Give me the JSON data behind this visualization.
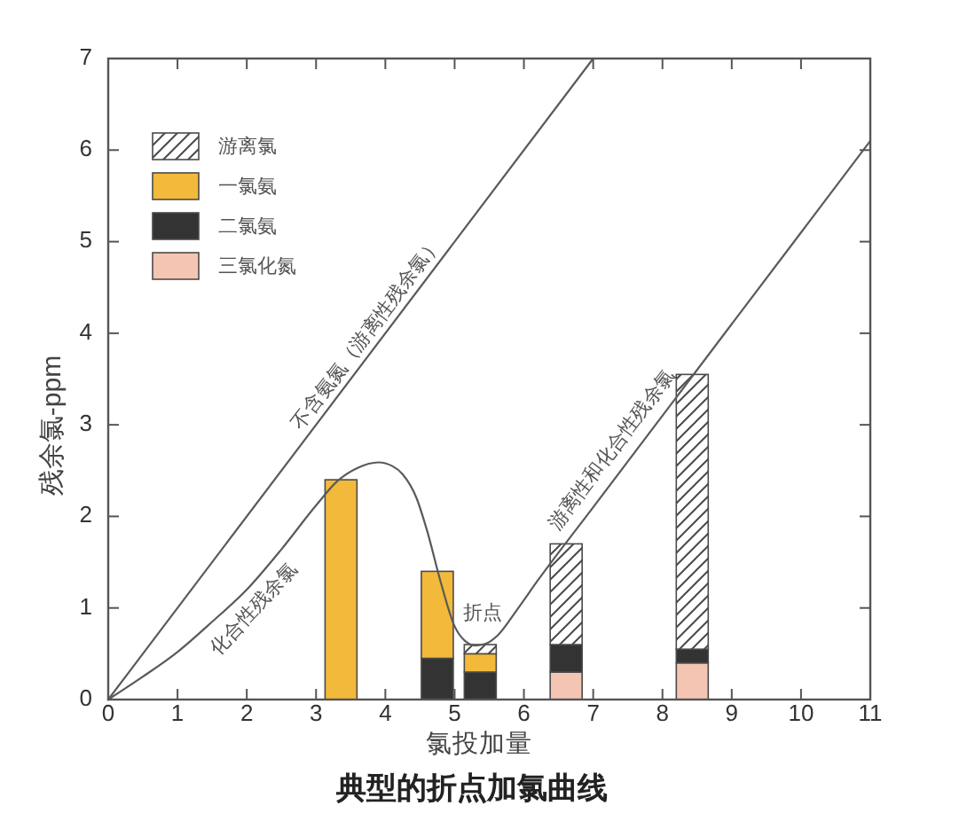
{
  "chart_data": {
    "type": "bar",
    "title": "典型的折点加氯曲线",
    "xlabel": "氯投加量",
    "ylabel": "残余氯-ppm",
    "x": [
      3.36,
      4.75,
      5.37,
      6.61,
      8.43
    ],
    "xlim": [
      0,
      11
    ],
    "xticks": [
      0,
      1,
      2,
      3,
      4,
      5,
      6,
      7,
      8,
      9,
      10,
      11
    ],
    "ylim": [
      0,
      7
    ],
    "yticks": [
      0,
      1,
      2,
      3,
      4,
      5,
      6,
      7
    ],
    "stacked": true,
    "legend": "top left",
    "series": [
      {
        "name": "三氯化氮",
        "color": "#f4c5b2",
        "values": [
          null,
          null,
          null,
          0.3,
          0.4
        ]
      },
      {
        "name": "二氯氨",
        "color": "#333333",
        "values": [
          null,
          0.45,
          0.3,
          0.3,
          0.15
        ]
      },
      {
        "name": "一氯氨",
        "color": "#f2b93b",
        "values": [
          2.4,
          0.95,
          0.2,
          null,
          null
        ]
      },
      {
        "name": "游离氯",
        "color": "#4a4a4a",
        "values": [
          null,
          null,
          0.1,
          1.1,
          3.0
        ]
      },
      {
        "type": "line",
        "color": "#5a5a5a",
        "x": [
          0,
          7
        ],
        "values": [
          0,
          7
        ]
      },
      {
        "type": "line",
        "color": "#5a5a5a",
        "x": [
          0,
          0.5,
          1,
          1.5,
          2,
          2.5,
          3,
          3.3,
          3.6,
          3.9,
          4.1,
          4.25,
          4.45,
          4.6,
          4.8,
          5.0,
          5.15,
          5.3,
          5.45,
          5.62,
          5.9,
          6.2,
          7,
          8,
          9,
          10,
          11
        ],
        "values": [
          0,
          0.25,
          0.52,
          0.85,
          1.2,
          1.64,
          2.12,
          2.38,
          2.53,
          2.59,
          2.55,
          2.46,
          2.2,
          1.85,
          1.28,
          0.8,
          0.64,
          0.59,
          0.61,
          0.7,
          0.98,
          1.3,
          2.1,
          3.1,
          4.1,
          5.1,
          6.1
        ]
      }
    ],
    "annotations": [
      {
        "text": "不含氨氮（游离性残余氯）",
        "x": 3.9,
        "y": 3.9
      },
      {
        "text": "化合性残余氯",
        "x": 1.9,
        "y": 1.13
      },
      {
        "text": "游离性和化合性残余氯",
        "x": 7.5,
        "y": 2.6
      },
      {
        "text": "折点",
        "x": 5.3,
        "y": 0.59
      }
    ]
  }
}
